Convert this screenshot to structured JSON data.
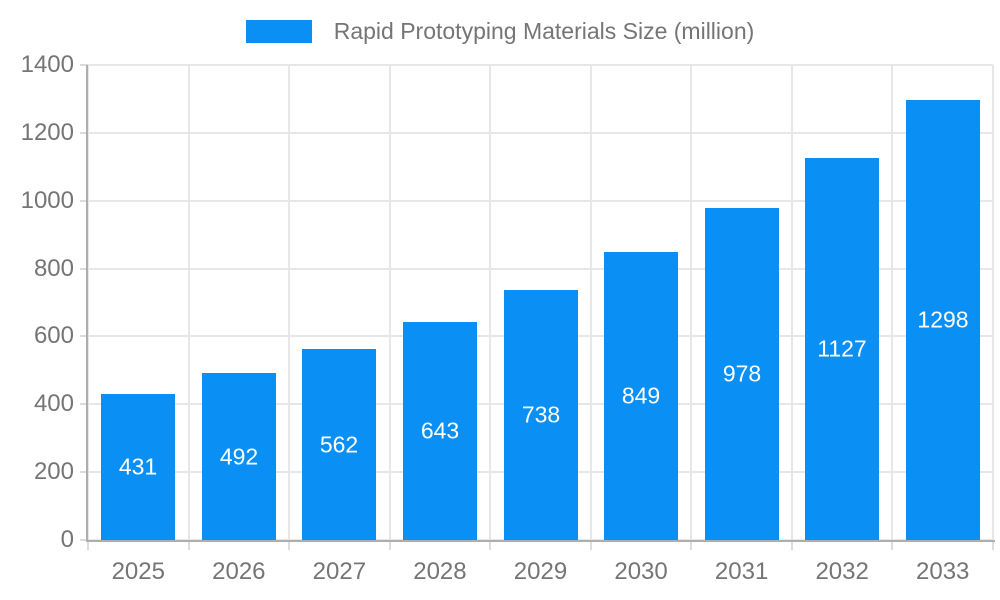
{
  "chart_data": {
    "type": "bar",
    "title": "Rapid Prototyping Materials Size (million)",
    "legend_label": "Rapid Prototyping Materials Size (million)",
    "legend_position": "top",
    "categories": [
      "2025",
      "2026",
      "2027",
      "2028",
      "2029",
      "2030",
      "2031",
      "2032",
      "2033"
    ],
    "series": [
      {
        "name": "Rapid Prototyping Materials Size (million)",
        "values": [
          431,
          492,
          562,
          643,
          738,
          849,
          978,
          1127,
          1298
        ]
      }
    ],
    "values": [
      431,
      492,
      562,
      643,
      738,
      849,
      978,
      1127,
      1298
    ],
    "data_labels": [
      "431",
      "492",
      "562",
      "643",
      "738",
      "849",
      "978",
      "1127",
      "1298"
    ],
    "xlabel": "",
    "ylabel": "",
    "ylim": [
      0,
      1400
    ],
    "ytick_step": 200,
    "yticks": [
      "0",
      "200",
      "400",
      "600",
      "800",
      "1000",
      "1200",
      "1400"
    ],
    "grid": "on",
    "colors": {
      "bar": "#0a90f5",
      "bar_value_text": "#ffffff",
      "axis_text": "#757575",
      "grid_line": "#e7e7e7",
      "axis_line": "#aeaeae",
      "background": "#ffffff"
    }
  }
}
